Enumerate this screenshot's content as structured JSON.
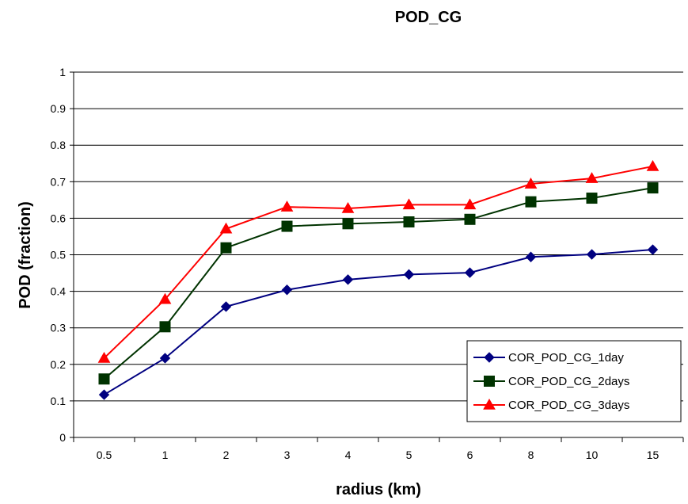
{
  "chart_data": {
    "type": "line",
    "title": "POD_CG",
    "xlabel": "radius (km)",
    "ylabel": "POD (fraction)",
    "categories": [
      "0.5",
      "1",
      "2",
      "3",
      "4",
      "5",
      "6",
      "8",
      "10",
      "15"
    ],
    "ylim": [
      0,
      1
    ],
    "yticks": [
      "0",
      "0.1",
      "0.2",
      "0.3",
      "0.4",
      "0.5",
      "0.6",
      "0.7",
      "0.8",
      "0.9",
      "1"
    ],
    "grid": "horizontal",
    "legend_position": "bottom-right",
    "series": [
      {
        "name": "COR_POD_CG_1day",
        "color": "#000080",
        "marker": "diamond",
        "values": [
          0.117,
          0.217,
          0.358,
          0.404,
          0.432,
          0.446,
          0.451,
          0.494,
          0.501,
          0.514
        ]
      },
      {
        "name": "COR_POD_CG_2days",
        "color": "#003300",
        "marker": "square",
        "values": [
          0.16,
          0.303,
          0.519,
          0.578,
          0.585,
          0.59,
          0.597,
          0.645,
          0.655,
          0.683
        ]
      },
      {
        "name": "COR_POD_CG_3days",
        "color": "#FF0000",
        "marker": "triangle",
        "values": [
          0.217,
          0.378,
          0.571,
          0.631,
          0.627,
          0.637,
          0.637,
          0.694,
          0.709,
          0.742
        ]
      }
    ]
  }
}
